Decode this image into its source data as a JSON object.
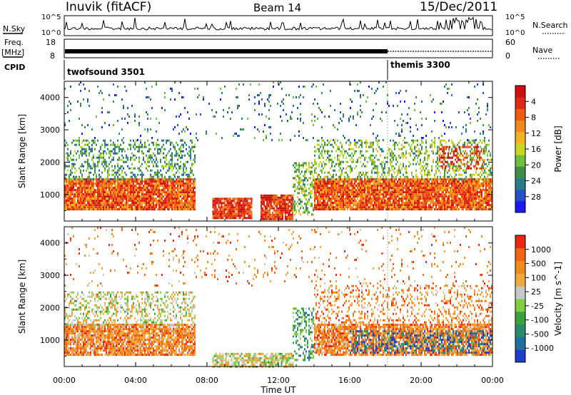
{
  "header": {
    "title": "Inuvik (fitACF)",
    "beam": "Beam 14",
    "date": "15/Dec/2011"
  },
  "status_panels": {
    "nsky_label": "N.Sky",
    "nsearch_label": "N.Search",
    "nsky_ticks": [
      "10^5",
      "10^0"
    ],
    "nsearch_ticks": [
      "10^5",
      "10^0"
    ],
    "freq_label": "Freq.",
    "freq_unit": "[MHz]",
    "freq_ticks": [
      "18",
      "8"
    ],
    "nave_label": "Nave",
    "nave_ticks": [
      "60",
      "0"
    ],
    "cpid_label": "CPID",
    "cpid_modes": [
      {
        "name": "twofsound 3501",
        "start_hour": 0
      },
      {
        "name": "themis 3300",
        "start_hour": 18.0
      }
    ]
  },
  "chart_data": [
    {
      "type": "heatmap",
      "quantity": "Power",
      "xlabel": "Time UT",
      "ylabel": "Slant Range [km]",
      "xlim": [
        0,
        24
      ],
      "ylim": [
        180,
        4500
      ],
      "yticks": [
        1000,
        2000,
        3000,
        4000
      ],
      "xticks": [
        "00:00",
        "04:00",
        "08:00",
        "12:00",
        "16:00",
        "20:00",
        "00:00"
      ],
      "colorbar": {
        "label": "Power [dB]",
        "ticks": [
          "4",
          "8",
          "12",
          "16",
          "20",
          "24",
          "28"
        ],
        "colors": [
          "#1a1af0",
          "#2550c8",
          "#2a7d86",
          "#3f8f4a",
          "#6fbf3a",
          "#c8d820",
          "#f0b41e",
          "#f08a1e",
          "#f05a14",
          "#e02818",
          "#d01010"
        ]
      },
      "scatter_regions": [
        {
          "t": [
            0.0,
            7.3
          ],
          "r": [
            550,
            1500
          ],
          "level": 8,
          "density": 0.95
        },
        {
          "t": [
            0.0,
            7.3
          ],
          "r": [
            1500,
            2700
          ],
          "level": 3,
          "density": 0.35
        },
        {
          "t": [
            8.3,
            10.5
          ],
          "r": [
            250,
            900
          ],
          "level": 9,
          "density": 0.9
        },
        {
          "t": [
            11.0,
            12.8
          ],
          "r": [
            250,
            1000
          ],
          "level": 9,
          "density": 0.9
        },
        {
          "t": [
            12.8,
            14.0
          ],
          "r": [
            400,
            2000
          ],
          "level": 4,
          "density": 0.45
        },
        {
          "t": [
            14.0,
            24.0
          ],
          "r": [
            550,
            1500
          ],
          "level": 8,
          "density": 0.95
        },
        {
          "t": [
            14.0,
            24.0
          ],
          "r": [
            1500,
            2700
          ],
          "level": 4,
          "density": 0.35
        },
        {
          "t": [
            21.0,
            23.5
          ],
          "r": [
            1800,
            2500
          ],
          "level": 9,
          "density": 0.4
        },
        {
          "t": [
            0.0,
            24.0
          ],
          "r": [
            2700,
            4500
          ],
          "level": 2,
          "density": 0.05
        }
      ]
    },
    {
      "type": "heatmap",
      "quantity": "Velocity",
      "xlabel": "Time UT",
      "ylabel": "Slant Range [km]",
      "xlim": [
        0,
        24
      ],
      "ylim": [
        180,
        4500
      ],
      "yticks": [
        1000,
        2000,
        3000,
        4000
      ],
      "xticks": [
        "00:00",
        "04:00",
        "08:00",
        "12:00",
        "16:00",
        "20:00",
        "00:00"
      ],
      "colorbar": {
        "label": "Velocity [m s^-1]",
        "ticks": [
          "1000",
          "500",
          "100",
          "25",
          "-25",
          "-100",
          "-500",
          "-1000"
        ],
        "colors": [
          "#1e3cc8",
          "#226ea0",
          "#2a8a6a",
          "#3ca03c",
          "#7ed040",
          "#c8c8c8",
          "#f0aa3c",
          "#f08c1e",
          "#f06414",
          "#e82814"
        ]
      },
      "scatter_regions": [
        {
          "t": [
            0.0,
            7.3
          ],
          "r": [
            550,
            1500
          ],
          "level": 7,
          "density": 0.9
        },
        {
          "t": [
            0.0,
            7.3
          ],
          "r": [
            1500,
            2500
          ],
          "level": 5,
          "density": 0.35
        },
        {
          "t": [
            8.3,
            12.8
          ],
          "r": [
            200,
            600
          ],
          "level": 5,
          "density": 0.7
        },
        {
          "t": [
            12.8,
            14.0
          ],
          "r": [
            400,
            2000
          ],
          "level": 3,
          "density": 0.4
        },
        {
          "t": [
            14.0,
            24.0
          ],
          "r": [
            550,
            1500
          ],
          "level": 7,
          "density": 0.85
        },
        {
          "t": [
            16.0,
            24.0
          ],
          "r": [
            600,
            1300
          ],
          "level": 1,
          "density": 0.35
        },
        {
          "t": [
            14.0,
            24.0
          ],
          "r": [
            1500,
            2700
          ],
          "level": 7,
          "density": 0.25
        },
        {
          "t": [
            0.0,
            24.0
          ],
          "r": [
            2700,
            4500
          ],
          "level": 7,
          "density": 0.05
        }
      ]
    }
  ]
}
